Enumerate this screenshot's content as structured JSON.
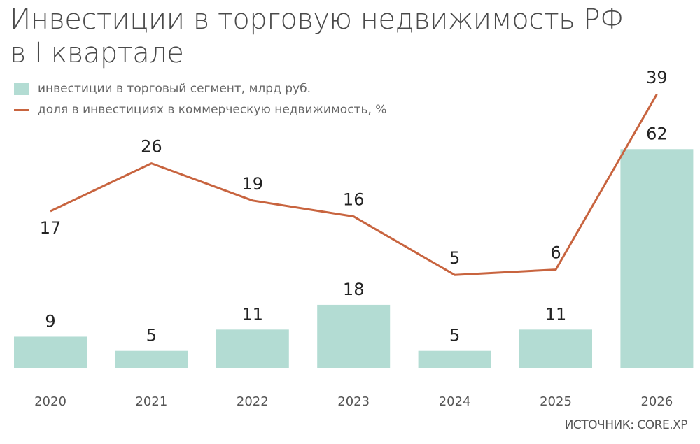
{
  "chart_data": {
    "type": "bar+line",
    "title": "Инвестиции в торговую недвижимость РФ в I квартале",
    "title_lines": [
      "Инвестиции в торговую недвижимость РФ",
      "в I квартале"
    ],
    "categories": [
      "2020",
      "2021",
      "2022",
      "2023",
      "2024",
      "2025",
      "2026"
    ],
    "series": [
      {
        "name": "инвестиции в торговый сегмент, млрд руб.",
        "type": "bar",
        "color": "#b3dcd3",
        "values": [
          9,
          5,
          11,
          18,
          5,
          11,
          62
        ]
      },
      {
        "name": "доля в инвестициях в коммерческую недвижимость, %",
        "type": "line",
        "color": "#c8643f",
        "values": [
          17,
          26,
          19,
          16,
          5,
          6,
          39
        ]
      }
    ],
    "grid": false,
    "legend_position": "top-left",
    "source": "ИСТОЧНИК: CORE.XP"
  }
}
